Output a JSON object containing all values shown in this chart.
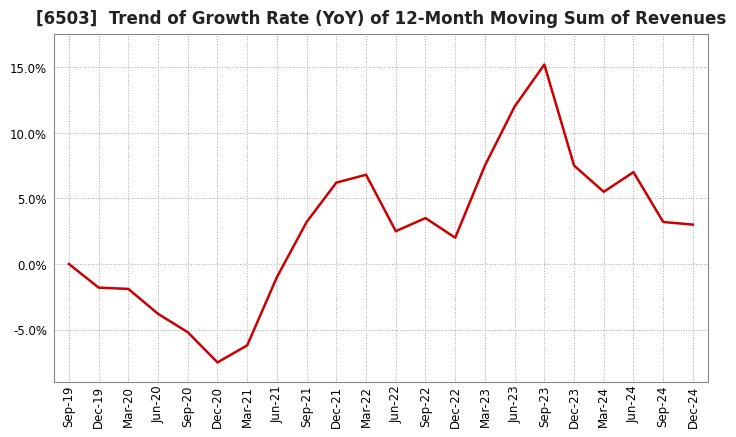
{
  "title": "[6503]  Trend of Growth Rate (YoY) of 12-Month Moving Sum of Revenues",
  "x_labels": [
    "Sep-19",
    "Dec-19",
    "Mar-20",
    "Jun-20",
    "Sep-20",
    "Dec-20",
    "Mar-21",
    "Jun-21",
    "Sep-21",
    "Dec-21",
    "Mar-22",
    "Jun-22",
    "Sep-22",
    "Dec-22",
    "Mar-23",
    "Jun-23",
    "Sep-23",
    "Dec-23",
    "Mar-24",
    "Jun-24",
    "Sep-24",
    "Dec-24"
  ],
  "y_values": [
    0.0,
    -1.8,
    -1.9,
    -3.8,
    -5.2,
    -7.5,
    -6.2,
    -1.0,
    3.2,
    6.2,
    6.8,
    2.5,
    3.5,
    2.0,
    7.5,
    12.0,
    15.2,
    7.5,
    5.5,
    7.0,
    3.2,
    3.0
  ],
  "line_color": "#cc0000",
  "background_color": "#ffffff",
  "grid_color": "#aaaaaa",
  "ylim": [
    -9.0,
    17.5
  ],
  "yticks": [
    -5.0,
    0.0,
    5.0,
    10.0,
    15.0
  ],
  "title_fontsize": 12,
  "tick_fontsize": 8.5
}
